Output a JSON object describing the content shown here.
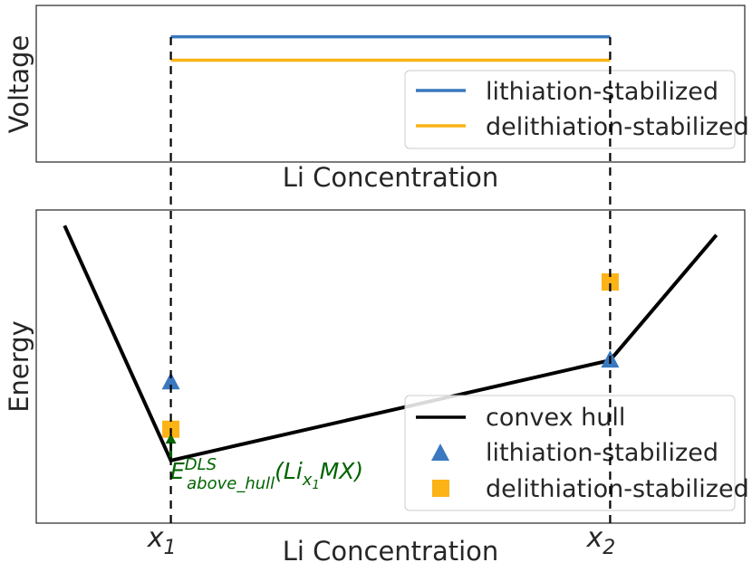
{
  "colors": {
    "lithiation": "#3a78bf",
    "delithiation": "#fbb315",
    "hull": "#000000",
    "annotation": "#006400"
  },
  "chart_data": [
    {
      "type": "line",
      "panel": "top",
      "xlabel": "Li Concentration",
      "ylabel": "Voltage",
      "x_range": [
        0.0,
        1.0
      ],
      "y_range": [
        0.0,
        1.0
      ],
      "series": [
        {
          "name": "lithiation-stabilized",
          "x": [
            0.19,
            0.81
          ],
          "y": [
            0.8,
            0.8
          ],
          "color": "#3a78bf"
        },
        {
          "name": "delithiation-stabilized",
          "x": [
            0.19,
            0.81
          ],
          "y": [
            0.65,
            0.65
          ],
          "color": "#fbb315"
        }
      ],
      "legend": {
        "position": "bottom-right",
        "entries": [
          "lithiation-stabilized",
          "delithiation-stabilized"
        ]
      }
    },
    {
      "type": "scatter",
      "panel": "bottom",
      "xlabel": "Li Concentration",
      "ylabel": "Energy",
      "x_range": [
        0.0,
        1.0
      ],
      "y_range": [
        0.0,
        1.0
      ],
      "xticks": [
        {
          "value": 0.19,
          "base": "x",
          "sub": "1"
        },
        {
          "value": 0.81,
          "base": "x",
          "sub": "2"
        }
      ],
      "series": [
        {
          "name": "convex hull",
          "kind": "line",
          "x": [
            0.04,
            0.19,
            0.81,
            0.96
          ],
          "y": [
            0.95,
            0.2,
            0.52,
            0.92
          ],
          "color": "#000000"
        },
        {
          "name": "lithiation-stabilized",
          "kind": "marker",
          "marker": "triangle",
          "x": [
            0.19,
            0.81
          ],
          "y": [
            0.45,
            0.52
          ],
          "color": "#3a78bf"
        },
        {
          "name": "delithiation-stabilized",
          "kind": "marker",
          "marker": "square",
          "x": [
            0.19,
            0.81
          ],
          "y": [
            0.3,
            0.77
          ],
          "color": "#fbb315"
        }
      ],
      "annotation": {
        "main": "E",
        "superscript": "DLS",
        "subscript": "above_hull",
        "arg_pre": "(Li",
        "arg_sub": "x",
        "arg_subsub": "1",
        "arg_post": "MX)",
        "arrow": {
          "x": 0.19,
          "from_y": 0.2,
          "to_y": 0.28
        }
      },
      "legend": {
        "position": "bottom-right",
        "entries": [
          "convex hull",
          "lithiation-stabilized",
          "delithiation-stabilized"
        ]
      }
    }
  ]
}
